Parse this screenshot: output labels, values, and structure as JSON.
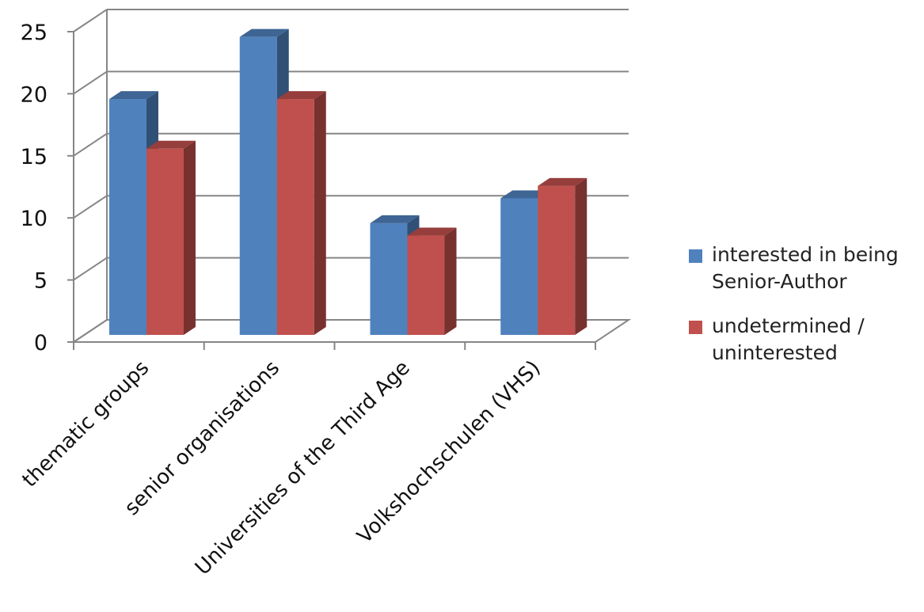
{
  "chart_data": {
    "type": "bar",
    "three_d": true,
    "categories": [
      "thematic groups",
      "senior organisations",
      "Universities of the Third Age",
      "Volkshochschulen (VHS)"
    ],
    "series": [
      {
        "name": "interested in being\nSenior-Author",
        "values": [
          19,
          24,
          9,
          11
        ],
        "color": "#4f81bd"
      },
      {
        "name": "undetermined /\nuninterested",
        "values": [
          15,
          19,
          8,
          12
        ],
        "color": "#c0504d"
      }
    ],
    "ylim": [
      0,
      25
    ],
    "yticks": [
      0,
      5,
      10,
      15,
      20,
      25
    ],
    "grid": true,
    "legend_position": "right"
  }
}
